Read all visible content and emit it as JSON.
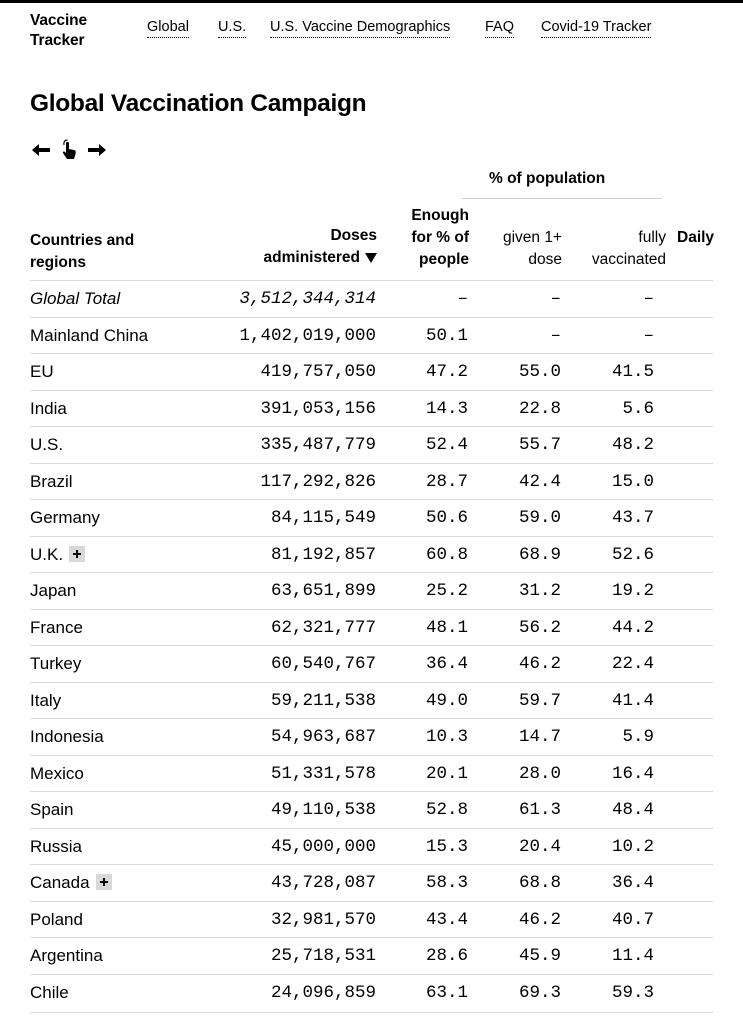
{
  "brand": {
    "line1": "Vaccine",
    "line2": "Tracker"
  },
  "nav": [
    "Global",
    "U.S.",
    "U.S. Vaccine Demographics",
    "FAQ",
    "Covid-19 Tracker"
  ],
  "page_title": "Global Vaccination Campaign",
  "table": {
    "group_header": "% of population",
    "headers": {
      "country_line1": "Countries and",
      "country_line2": "regions",
      "doses_line1": "Doses",
      "doses_line2": "administered",
      "enough_line1": "Enough",
      "enough_line2": "for % of",
      "enough_line3": "people",
      "given_line1": "given 1+",
      "given_line2": "dose",
      "fully_line1": "fully",
      "fully_line2": "vaccinated",
      "daily": "Daily"
    },
    "rows": [
      {
        "country": "Global Total",
        "doses": "3,512,344,314",
        "enough": "–",
        "given": "–",
        "fully": "–"
      },
      {
        "country": "Mainland China",
        "doses": "1,402,019,000",
        "enough": "50.1",
        "given": "–",
        "fully": "–"
      },
      {
        "country": "EU",
        "doses": "419,757,050",
        "enough": "47.2",
        "given": "55.0",
        "fully": "41.5"
      },
      {
        "country": "India",
        "doses": "391,053,156",
        "enough": "14.3",
        "given": "22.8",
        "fully": "5.6"
      },
      {
        "country": "U.S.",
        "doses": "335,487,779",
        "enough": "52.4",
        "given": "55.7",
        "fully": "48.2"
      },
      {
        "country": "Brazil",
        "doses": "117,292,826",
        "enough": "28.7",
        "given": "42.4",
        "fully": "15.0"
      },
      {
        "country": "Germany",
        "doses": "84,115,549",
        "enough": "50.6",
        "given": "59.0",
        "fully": "43.7"
      },
      {
        "country": "U.K.",
        "doses": "81,192,857",
        "enough": "60.8",
        "given": "68.9",
        "fully": "52.6"
      },
      {
        "country": "Japan",
        "doses": "63,651,899",
        "enough": "25.2",
        "given": "31.2",
        "fully": "19.2"
      },
      {
        "country": "France",
        "doses": "62,321,777",
        "enough": "48.1",
        "given": "56.2",
        "fully": "44.2"
      },
      {
        "country": "Turkey",
        "doses": "60,540,767",
        "enough": "36.4",
        "given": "46.2",
        "fully": "22.4"
      },
      {
        "country": "Italy",
        "doses": "59,211,538",
        "enough": "49.0",
        "given": "59.7",
        "fully": "41.4"
      },
      {
        "country": "Indonesia",
        "doses": "54,963,687",
        "enough": "10.3",
        "given": "14.7",
        "fully": "5.9"
      },
      {
        "country": "Mexico",
        "doses": "51,331,578",
        "enough": "20.1",
        "given": "28.0",
        "fully": "16.4"
      },
      {
        "country": "Spain",
        "doses": "49,110,538",
        "enough": "52.8",
        "given": "61.3",
        "fully": "48.4"
      },
      {
        "country": "Russia",
        "doses": "45,000,000",
        "enough": "15.3",
        "given": "20.4",
        "fully": "10.2"
      },
      {
        "country": "Canada",
        "doses": "43,728,087",
        "enough": "58.3",
        "given": "68.8",
        "fully": "36.4"
      },
      {
        "country": "Poland",
        "doses": "32,981,570",
        "enough": "43.4",
        "given": "46.2",
        "fully": "40.7"
      },
      {
        "country": "Argentina",
        "doses": "25,718,531",
        "enough": "28.6",
        "given": "45.9",
        "fully": "11.4"
      },
      {
        "country": "Chile",
        "doses": "24,096,859",
        "enough": "63.1",
        "given": "69.3",
        "fully": "59.3"
      }
    ]
  }
}
